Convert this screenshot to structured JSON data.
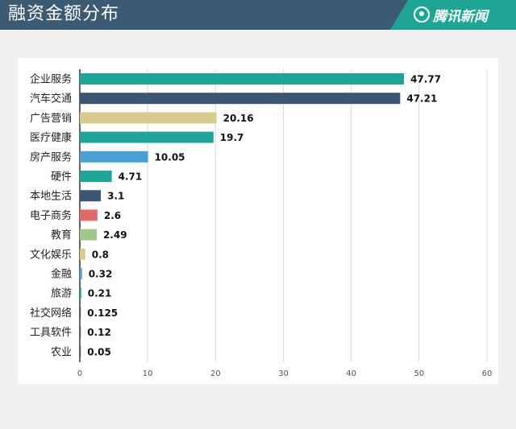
{
  "header": {
    "title": "融资金额分布",
    "logo_text": "腾讯新闻",
    "logo_icon": "tencent-news-logo-icon",
    "bg_color": "#3d5a73",
    "accent_color": "#1fa596"
  },
  "chart_data": {
    "type": "bar",
    "orientation": "horizontal",
    "title": "融资金额分布",
    "categories": [
      "企业服务",
      "汽车交通",
      "广告营销",
      "医疗健康",
      "房产服务",
      "硬件",
      "本地生活",
      "电子商务",
      "教育",
      "文化娱乐",
      "金融",
      "旅游",
      "社交网络",
      "工具软件",
      "农业"
    ],
    "values": [
      47.77,
      47.21,
      20.16,
      19.7,
      10.05,
      4.71,
      3.1,
      2.6,
      2.49,
      0.8,
      0.32,
      0.21,
      0.125,
      0.12,
      0.05
    ],
    "value_labels": [
      "47.77",
      "47.21",
      "20.16",
      "19.7",
      "10.05",
      "4.71",
      "3.1",
      "2.6",
      "2.49",
      "0.8",
      "0.32",
      "0.21",
      "0.125",
      "0.12",
      "0.05"
    ],
    "colors": [
      "#1fa596",
      "#3b5670",
      "#d8cb8e",
      "#1fa596",
      "#4a9fd4",
      "#1fa596",
      "#3b5670",
      "#e06969",
      "#9ec98a",
      "#d8cb8e",
      "#4a9fd4",
      "#1fa596",
      "#3b5670",
      "#3b5670",
      "#3b5670"
    ],
    "xlim": [
      0,
      60
    ],
    "x_ticks": [
      "0",
      "10",
      "20",
      "30",
      "40",
      "50",
      "60"
    ],
    "grid": "vertical",
    "xlabel": "",
    "ylabel": ""
  }
}
